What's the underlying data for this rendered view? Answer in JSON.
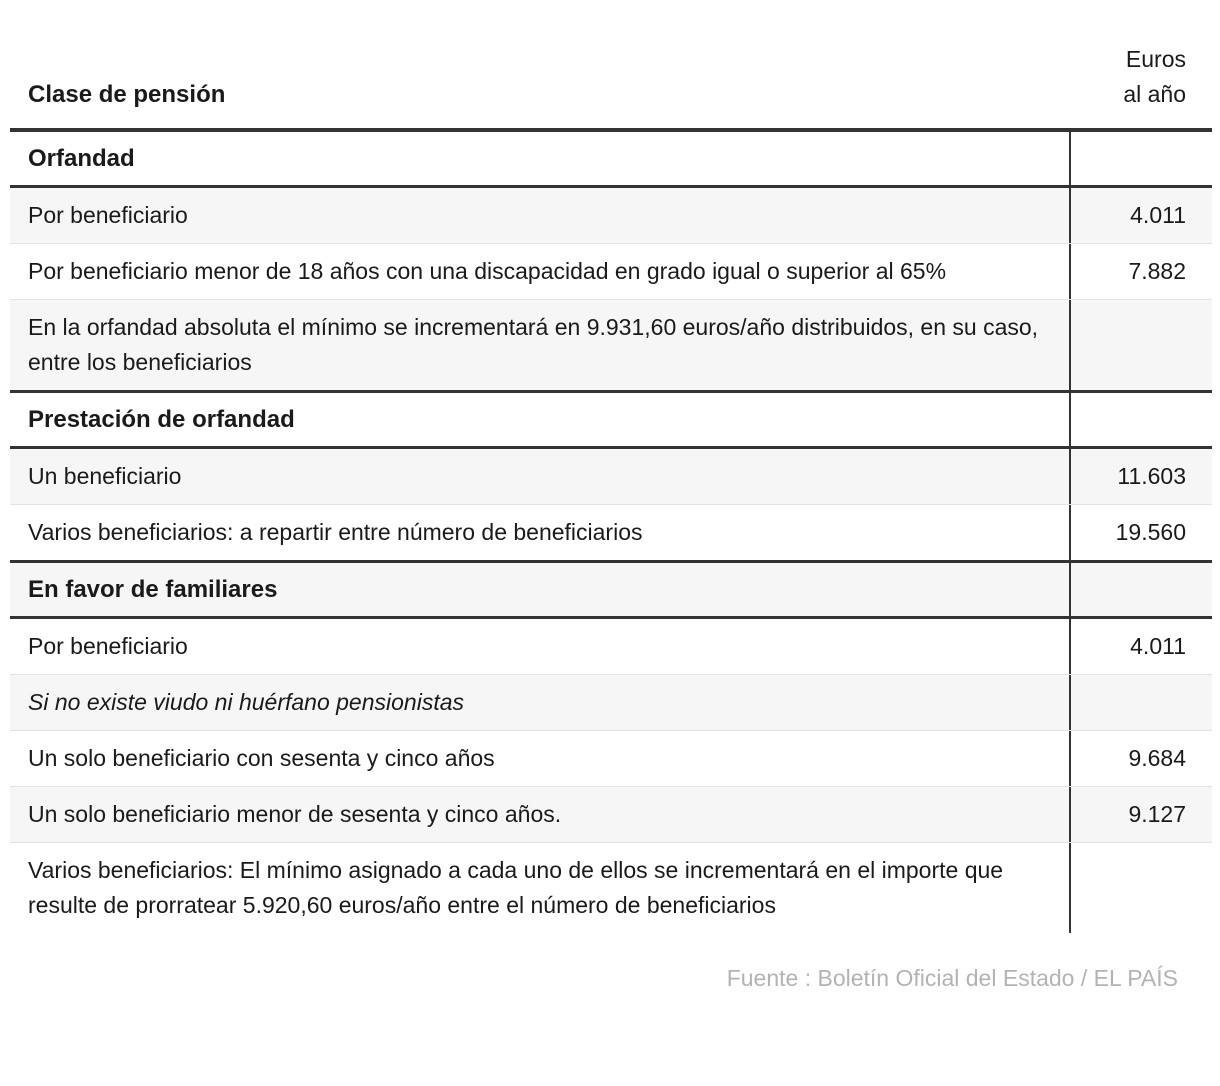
{
  "header": {
    "left": "Clase de pensión",
    "right_line1": "Euros",
    "right_line2": "al año"
  },
  "chart_data": {
    "type": "table",
    "columns": [
      "Clase de pensión",
      "Euros al año"
    ],
    "sections": [
      {
        "header": "Orfandad",
        "rows": [
          {
            "label": "Por beneficiario",
            "value": "4.011"
          },
          {
            "label": "Por beneficiario menor de 18 años con una discapacidad en grado igual o superior al 65%",
            "value": "7.882"
          },
          {
            "label": "En la orfandad absoluta el mínimo se incrementará en 9.931,60 euros/año distribuidos, en su caso, entre los beneficiarios",
            "value": ""
          }
        ]
      },
      {
        "header": "Prestación de orfandad",
        "rows": [
          {
            "label": "Un beneficiario",
            "value": "11.603"
          },
          {
            "label": "Varios beneficiarios: a repartir entre número de beneficiarios",
            "value": "19.560"
          }
        ]
      },
      {
        "header": "En favor de familiares",
        "rows": [
          {
            "label": "Por beneficiario",
            "value": "4.011"
          },
          {
            "label": "Si no existe viudo ni huérfano pensionistas",
            "value": "",
            "italic": true
          },
          {
            "label": "Un solo beneficiario con sesenta y cinco años",
            "value": "9.684"
          },
          {
            "label": "Un solo beneficiario menor de sesenta y cinco años.",
            "value": "9.127"
          },
          {
            "label": "Varios beneficiarios: El mínimo asignado a cada uno de ellos se incrementará en el importe que resulte de prorratear 5.920,60 euros/año entre el número de beneficiarios",
            "value": ""
          }
        ]
      }
    ],
    "source": "Fuente : Boletín Oficial del Estado / EL PAÍS"
  },
  "colors": {
    "text": "#1a1a1a",
    "stripe": "#f6f6f6",
    "dark_border": "#333333",
    "light_border": "#e3e3e3",
    "source_text": "#b3b3b3"
  }
}
